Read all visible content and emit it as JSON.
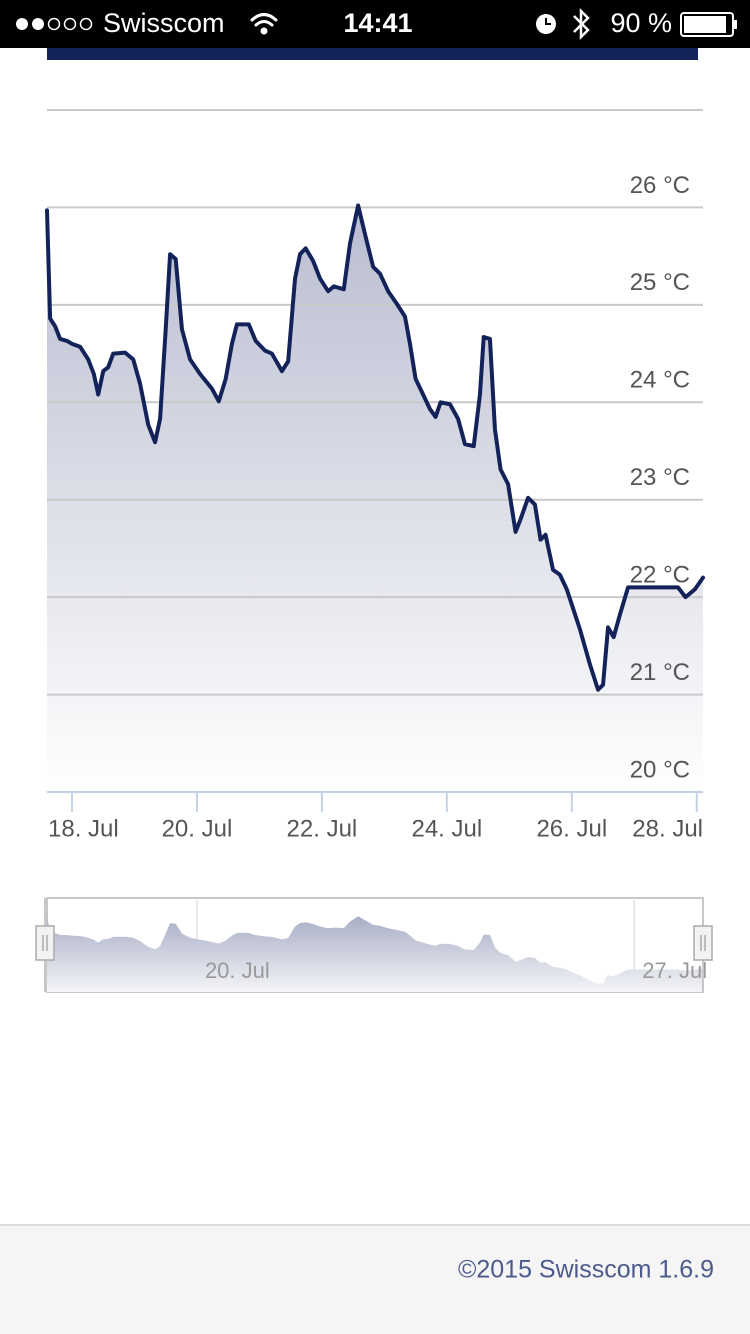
{
  "status_bar": {
    "carrier": "Swisscom",
    "time": "14:41",
    "battery": "90 %"
  },
  "chart_data": {
    "type": "line",
    "x": [
      17.6,
      17.65,
      17.73,
      17.81,
      17.92,
      18.0,
      18.13,
      18.26,
      18.35,
      18.42,
      18.5,
      18.58,
      18.66,
      18.85,
      18.98,
      19.09,
      19.22,
      19.33,
      19.41,
      19.5,
      19.57,
      19.66,
      19.76,
      19.89,
      20.05,
      20.24,
      20.35,
      20.46,
      20.56,
      20.64,
      20.83,
      20.94,
      21.09,
      21.2,
      21.36,
      21.46,
      21.57,
      21.65,
      21.74,
      21.86,
      21.97,
      22.1,
      22.19,
      22.35,
      22.45,
      22.58,
      22.7,
      22.82,
      22.93,
      23.06,
      23.2,
      23.33,
      23.41,
      23.5,
      23.62,
      23.73,
      23.82,
      23.9,
      24.05,
      24.18,
      24.29,
      24.43,
      24.53,
      24.59,
      24.69,
      24.77,
      24.86,
      24.98,
      25.1,
      25.18,
      25.3,
      25.41,
      25.5,
      25.58,
      25.7,
      25.81,
      25.92,
      26.13,
      26.29,
      26.42,
      26.5,
      26.58,
      26.67,
      26.77,
      26.9,
      27.09,
      27.33,
      27.7,
      27.82,
      27.97,
      28.1
    ],
    "values": [
      25.97,
      24.86,
      24.78,
      24.65,
      24.63,
      24.6,
      24.57,
      24.44,
      24.29,
      24.08,
      24.32,
      24.36,
      24.5,
      24.51,
      24.44,
      24.19,
      23.77,
      23.59,
      23.83,
      24.75,
      25.52,
      25.47,
      24.75,
      24.44,
      24.29,
      24.14,
      24.01,
      24.24,
      24.6,
      24.8,
      24.8,
      24.63,
      24.53,
      24.5,
      24.32,
      24.42,
      25.27,
      25.52,
      25.58,
      25.45,
      25.27,
      25.14,
      25.19,
      25.16,
      25.63,
      26.02,
      25.7,
      25.39,
      25.32,
      25.14,
      25.01,
      24.88,
      24.6,
      24.24,
      24.08,
      23.93,
      23.85,
      24.0,
      23.98,
      23.83,
      23.57,
      23.55,
      24.08,
      24.67,
      24.65,
      23.72,
      23.31,
      23.16,
      22.67,
      22.8,
      23.02,
      22.95,
      22.59,
      22.64,
      22.28,
      22.23,
      22.08,
      21.67,
      21.31,
      21.05,
      21.1,
      21.69,
      21.59,
      21.82,
      22.1,
      22.1,
      22.1,
      22.1,
      22.0,
      22.08,
      22.2
    ],
    "color": "#13235a",
    "xlim": [
      17.6,
      28.1
    ],
    "ylim": [
      20,
      27
    ],
    "xticks": [
      {
        "value": 18,
        "label": "18. Jul"
      },
      {
        "value": 20,
        "label": "20. Jul"
      },
      {
        "value": 22,
        "label": "22. Jul"
      },
      {
        "value": 24,
        "label": "24. Jul"
      },
      {
        "value": 26,
        "label": "26. Jul"
      },
      {
        "value": 28,
        "label": "28. Jul"
      }
    ],
    "yticks": [
      {
        "value": 20,
        "label": "20 °C"
      },
      {
        "value": 21,
        "label": "21 °C"
      },
      {
        "value": 22,
        "label": "22 °C"
      },
      {
        "value": 23,
        "label": "23 °C"
      },
      {
        "value": 24,
        "label": "24 °C"
      },
      {
        "value": 25,
        "label": "25 °C"
      },
      {
        "value": 26,
        "label": "26 °C"
      }
    ],
    "grid": true,
    "navigator_ticks": [
      {
        "value": 20,
        "label": "20. Jul"
      },
      {
        "value": 27,
        "label": "27. Jul"
      }
    ]
  },
  "footer": {
    "text": "©2015 Swisscom 1.6.9"
  }
}
